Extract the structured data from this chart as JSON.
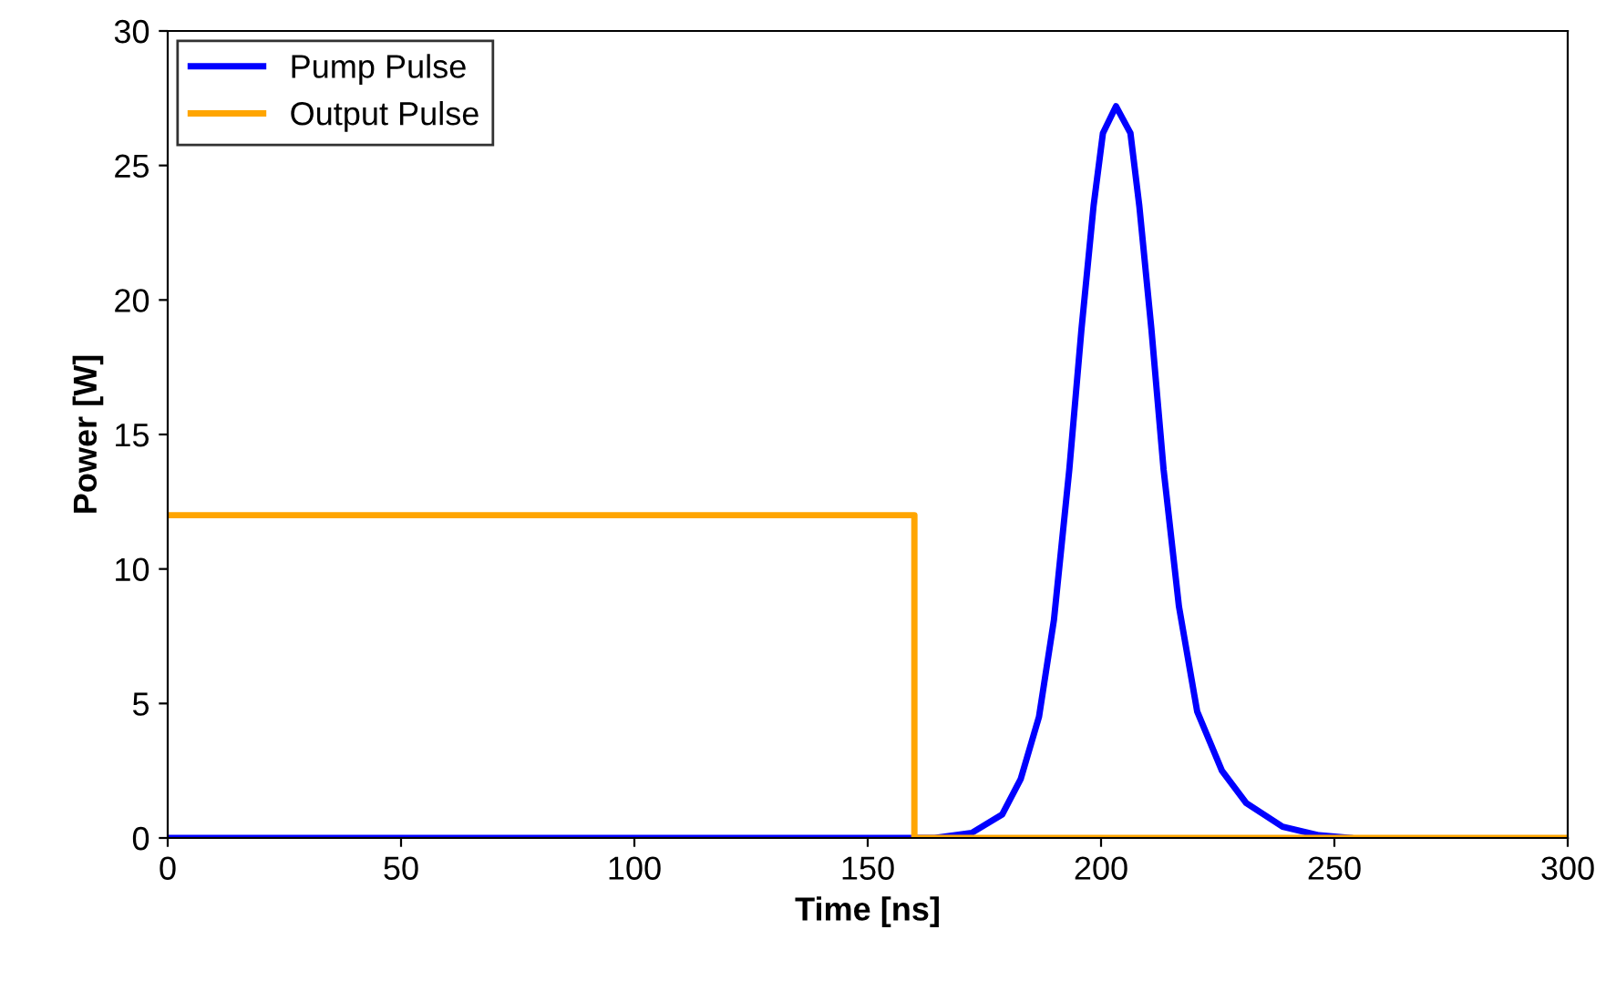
{
  "chart_data": {
    "type": "line",
    "xlabel": "Time [ns]",
    "ylabel": "Power [W]",
    "xlim": [
      0,
      300
    ],
    "xticks": [
      0,
      50,
      100,
      150,
      200,
      250,
      300
    ],
    "ylim": [
      0,
      30
    ],
    "yticks": [
      0,
      5,
      10,
      15,
      20,
      25,
      30
    ],
    "grid": false,
    "legend": "top left",
    "marker": "none",
    "line_style": "solid",
    "series": [
      {
        "name": "Pump Pulse",
        "color": "#0000ff",
        "x": [
          0,
          164.4,
          172.3,
          178.8,
          182.8,
          186.7,
          189.9,
          193.2,
          195.8,
          198.4,
          200.4,
          203.2,
          206.3,
          208.2,
          210.8,
          213.4,
          216.7,
          220.6,
          225.9,
          231.1,
          238.9,
          246.7,
          253.3
        ],
        "values": [
          0,
          0,
          0.19,
          0.87,
          2.2,
          4.5,
          8.1,
          13.7,
          18.9,
          23.5,
          26.2,
          27.2,
          26.2,
          23.5,
          18.9,
          13.7,
          8.6,
          4.7,
          2.5,
          1.3,
          0.42,
          0.1,
          0
        ]
      },
      {
        "name": "Output Pulse",
        "color": "#ffa500",
        "x": [
          0,
          160,
          160,
          300
        ],
        "values": [
          12,
          12,
          0,
          0
        ]
      }
    ]
  }
}
